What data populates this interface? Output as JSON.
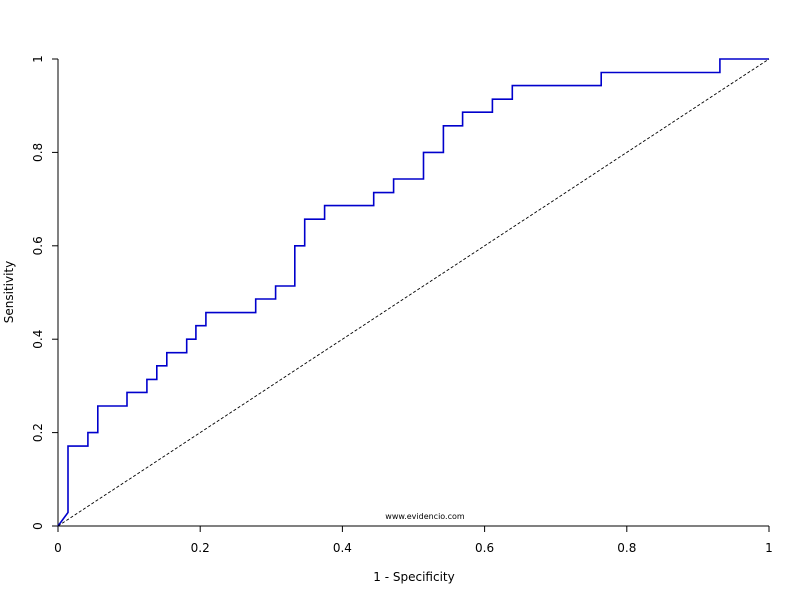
{
  "chart_data": {
    "type": "line",
    "xlabel": "1 - Specificity",
    "ylabel": "Sensitivity",
    "xlim": [
      0,
      1
    ],
    "ylim": [
      0,
      1
    ],
    "x_ticks": [
      {
        "value": 0,
        "label": "0"
      },
      {
        "value": 0.2,
        "label": "0.2"
      },
      {
        "value": 0.4,
        "label": "0.4"
      },
      {
        "value": 0.6,
        "label": "0.6"
      },
      {
        "value": 0.8,
        "label": "0.8"
      },
      {
        "value": 1,
        "label": "1"
      }
    ],
    "y_ticks": [
      {
        "value": 0,
        "label": "0"
      },
      {
        "value": 0.2,
        "label": "0.2"
      },
      {
        "value": 0.4,
        "label": "0.4"
      },
      {
        "value": 0.6,
        "label": "0.6"
      },
      {
        "value": 0.8,
        "label": "0.8"
      },
      {
        "value": 1,
        "label": "1"
      }
    ],
    "grid": false,
    "annotation": "www.evidencio.com",
    "series": [
      {
        "color": "#0000cc",
        "style": "step",
        "points": [
          [
            0,
            0
          ],
          [
            0.014,
            0.029
          ],
          [
            0.014,
            0.171
          ],
          [
            0.042,
            0.171
          ],
          [
            0.042,
            0.2
          ],
          [
            0.056,
            0.2
          ],
          [
            0.056,
            0.257
          ],
          [
            0.097,
            0.257
          ],
          [
            0.097,
            0.286
          ],
          [
            0.125,
            0.286
          ],
          [
            0.125,
            0.314
          ],
          [
            0.139,
            0.314
          ],
          [
            0.139,
            0.343
          ],
          [
            0.153,
            0.343
          ],
          [
            0.153,
            0.371
          ],
          [
            0.181,
            0.371
          ],
          [
            0.181,
            0.4
          ],
          [
            0.194,
            0.4
          ],
          [
            0.194,
            0.429
          ],
          [
            0.208,
            0.429
          ],
          [
            0.208,
            0.457
          ],
          [
            0.278,
            0.457
          ],
          [
            0.278,
            0.486
          ],
          [
            0.306,
            0.486
          ],
          [
            0.306,
            0.514
          ],
          [
            0.333,
            0.514
          ],
          [
            0.333,
            0.6
          ],
          [
            0.347,
            0.6
          ],
          [
            0.347,
            0.657
          ],
          [
            0.375,
            0.657
          ],
          [
            0.375,
            0.686
          ],
          [
            0.444,
            0.686
          ],
          [
            0.444,
            0.714
          ],
          [
            0.472,
            0.714
          ],
          [
            0.472,
            0.743
          ],
          [
            0.514,
            0.743
          ],
          [
            0.514,
            0.8
          ],
          [
            0.542,
            0.8
          ],
          [
            0.542,
            0.857
          ],
          [
            0.569,
            0.857
          ],
          [
            0.569,
            0.886
          ],
          [
            0.611,
            0.886
          ],
          [
            0.611,
            0.914
          ],
          [
            0.639,
            0.914
          ],
          [
            0.639,
            0.943
          ],
          [
            0.764,
            0.943
          ],
          [
            0.764,
            0.971
          ],
          [
            0.931,
            0.971
          ],
          [
            0.931,
            1
          ],
          [
            1,
            1
          ]
        ]
      },
      {
        "color": "#000000",
        "style": "dashed",
        "points": [
          [
            0,
            0
          ],
          [
            1,
            1
          ]
        ]
      }
    ]
  }
}
